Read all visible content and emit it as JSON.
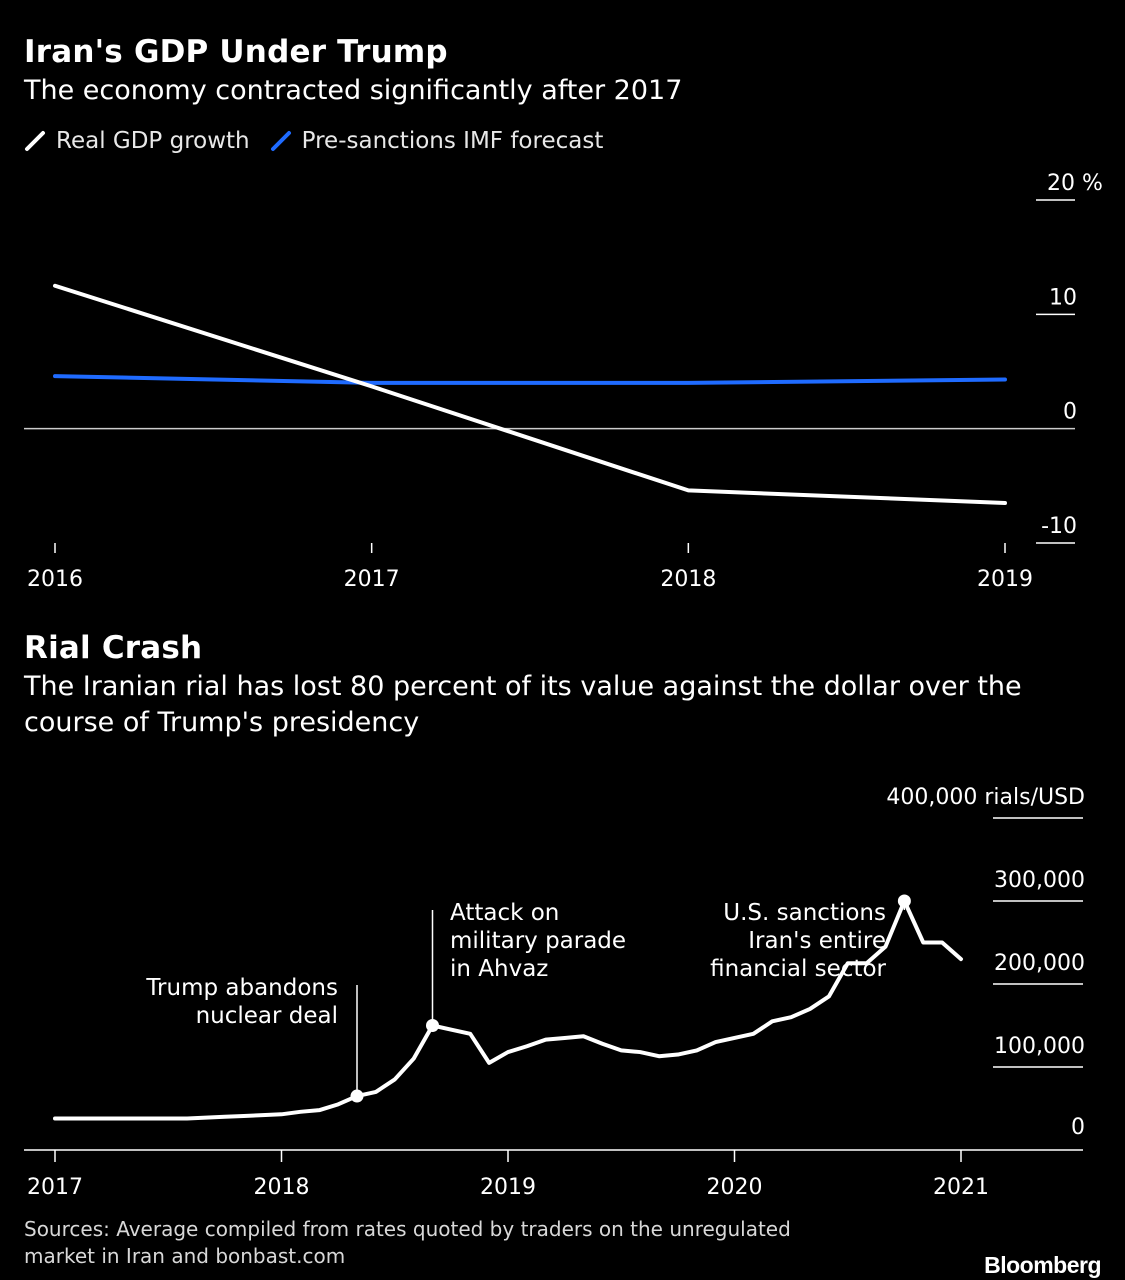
{
  "chart1": {
    "title": "Iran's GDP Under Trump",
    "subtitle": "The economy contracted significantly after 2017",
    "legend": [
      {
        "label": "Real GDP growth",
        "color": "#ffffff"
      },
      {
        "label": "Pre-sanctions IMF forecast",
        "color": "#1f6bff"
      }
    ],
    "chart_data": {
      "type": "line",
      "x": [
        "2016",
        "2017",
        "2018",
        "2019"
      ],
      "series": [
        {
          "name": "Real GDP growth",
          "color": "#ffffff",
          "values": [
            12.5,
            3.7,
            -5.4,
            -6.5
          ]
        },
        {
          "name": "Pre-sanctions IMF forecast",
          "color": "#1f6bff",
          "values": [
            4.6,
            4.0,
            4.0,
            4.3
          ]
        }
      ],
      "ylim": [
        -10,
        20
      ],
      "yticks": [
        -10,
        0,
        10,
        20
      ],
      "ytick_labels": [
        "-10",
        "0",
        "10",
        "20 %"
      ],
      "xticks": [
        "2016",
        "2017",
        "2018",
        "2019"
      ],
      "yaxis_side": "right",
      "zero_line": true
    }
  },
  "chart2": {
    "title": "Rial Crash",
    "subtitle_lines": [
      "The Iranian rial has lost 80 percent of its value against the dollar over the",
      "course of Trump's presidency"
    ],
    "chart_data": {
      "type": "line",
      "x": [
        "2017-01",
        "2017-02",
        "2017-03",
        "2017-04",
        "2017-05",
        "2017-06",
        "2017-07",
        "2017-08",
        "2017-09",
        "2017-10",
        "2017-11",
        "2017-12",
        "2018-01",
        "2018-02",
        "2018-03",
        "2018-04",
        "2018-05",
        "2018-06",
        "2018-07",
        "2018-08",
        "2018-09",
        "2018-10",
        "2018-11",
        "2018-12",
        "2019-01",
        "2019-02",
        "2019-03",
        "2019-04",
        "2019-05",
        "2019-06",
        "2019-07",
        "2019-08",
        "2019-09",
        "2019-10",
        "2019-11",
        "2019-12",
        "2020-01",
        "2020-02",
        "2020-03",
        "2020-04",
        "2020-05",
        "2020-06",
        "2020-07",
        "2020-08",
        "2020-09",
        "2020-10",
        "2020-11",
        "2020-12",
        "2021-01"
      ],
      "series": [
        {
          "name": "",
          "color": "#ffffff",
          "values": [
            38000,
            38000,
            38000,
            38000,
            38000,
            38000,
            38000,
            38000,
            39000,
            40000,
            41000,
            42000,
            43000,
            46000,
            48000,
            55000,
            65000,
            70000,
            85000,
            110000,
            150000,
            145000,
            140000,
            105000,
            118000,
            125000,
            133000,
            135000,
            137000,
            128000,
            120000,
            118000,
            113000,
            115000,
            120000,
            130000,
            135000,
            140000,
            155000,
            160000,
            170000,
            185000,
            225000,
            225000,
            245000,
            300000,
            250000,
            250000,
            230000
          ]
        }
      ],
      "ylim": [
        0,
        400000
      ],
      "yticks": [
        0,
        100000,
        200000,
        300000,
        400000
      ],
      "ytick_labels": [
        "0",
        "100,000",
        "200,000",
        "300,000",
        "400,000 rials/USD"
      ],
      "xticks": [
        "2017",
        "2018",
        "2019",
        "2020",
        "2021"
      ],
      "yaxis_side": "right",
      "annotations": [
        {
          "x_index": 16,
          "lines": [
            "Trump abandons",
            "nuclear deal"
          ],
          "align": "end"
        },
        {
          "x_index": 20,
          "lines": [
            "Attack on",
            "military parade",
            "in Ahvaz"
          ],
          "align": "start"
        },
        {
          "x_index": 45,
          "lines": [
            "U.S. sanctions",
            "Iran's entire",
            "financial sector"
          ],
          "align": "end"
        }
      ]
    }
  },
  "footer": {
    "sources_lines": [
      "Sources: Average compiled from rates quoted by traders on the unregulated",
      "market in Iran and bonbast.com"
    ],
    "logo": "Bloomberg"
  }
}
